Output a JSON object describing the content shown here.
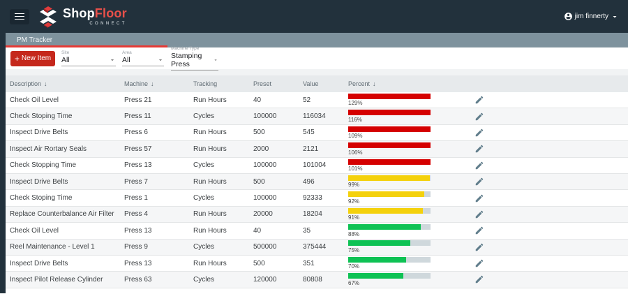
{
  "colors": {
    "red": "#d50000",
    "yellow": "#f4d10c",
    "green": "#0ec254",
    "accent_red": "#c5281c",
    "bar_track": "#cfd8dc"
  },
  "header": {
    "brand": {
      "shop": "Shop",
      "floor": "Floor",
      "connect": "CONNECT"
    },
    "user_name": "jim finnerty"
  },
  "tabbar": {
    "tabs": [
      {
        "label": "PM Tracker"
      }
    ]
  },
  "toolbar": {
    "new_item_button": {
      "plus": "+",
      "label": "New Item"
    },
    "filters": [
      {
        "label": "Site",
        "value": "All"
      },
      {
        "label": "Area",
        "value": "All"
      },
      {
        "label": "Machine Type",
        "value": "Stamping Press"
      }
    ]
  },
  "table": {
    "columns": [
      {
        "label": "Description",
        "sort": "↓"
      },
      {
        "label": "Machine",
        "sort": "↓"
      },
      {
        "label": "Tracking"
      },
      {
        "label": "Preset"
      },
      {
        "label": "Value"
      },
      {
        "label": "Percent",
        "sort": "↓"
      }
    ],
    "rows": [
      {
        "description": "Check Oil Level",
        "machine": "Press 21",
        "tracking": "Run Hours",
        "preset": "40",
        "value": "52",
        "percent": 129,
        "percent_label": "129%",
        "level": "red"
      },
      {
        "description": "Check Stoping Time",
        "machine": "Press 11",
        "tracking": "Cycles",
        "preset": "100000",
        "value": "116034",
        "percent": 116,
        "percent_label": "116%",
        "level": "red"
      },
      {
        "description": "Inspect Drive Belts",
        "machine": "Press 6",
        "tracking": "Run Hours",
        "preset": "500",
        "value": "545",
        "percent": 109,
        "percent_label": "109%",
        "level": "red"
      },
      {
        "description": "Inspect Air Rortary Seals",
        "machine": "Press 57",
        "tracking": "Run Hours",
        "preset": "2000",
        "value": "2121",
        "percent": 106,
        "percent_label": "106%",
        "level": "red"
      },
      {
        "description": "Check Stopping Time",
        "machine": "Press 13",
        "tracking": "Cycles",
        "preset": "100000",
        "value": "101004",
        "percent": 101,
        "percent_label": "101%",
        "level": "red"
      },
      {
        "description": "Inspect Drive Belts",
        "machine": "Press 7",
        "tracking": "Run Hours",
        "preset": "500",
        "value": "496",
        "percent": 99,
        "percent_label": "99%",
        "level": "yellow"
      },
      {
        "description": "Check Stoping Time",
        "machine": "Press 1",
        "tracking": "Cycles",
        "preset": "100000",
        "value": "92333",
        "percent": 92,
        "percent_label": "92%",
        "level": "yellow"
      },
      {
        "description": "Replace Counterbalance Air Filter",
        "machine": "Press 4",
        "tracking": "Run Hours",
        "preset": "20000",
        "value": "18204",
        "percent": 91,
        "percent_label": "91%",
        "level": "yellow"
      },
      {
        "description": "Check Oil Level",
        "machine": "Press 13",
        "tracking": "Run Hours",
        "preset": "40",
        "value": "35",
        "percent": 88,
        "percent_label": "88%",
        "level": "green"
      },
      {
        "description": "Reel Maintenance - Level 1",
        "machine": "Press 9",
        "tracking": "Cycles",
        "preset": "500000",
        "value": "375444",
        "percent": 75,
        "percent_label": "75%",
        "level": "green"
      },
      {
        "description": "Inspect Drive Belts",
        "machine": "Press 13",
        "tracking": "Run Hours",
        "preset": "500",
        "value": "351",
        "percent": 70,
        "percent_label": "70%",
        "level": "green"
      },
      {
        "description": "Inspect Pilot Release Cylinder",
        "machine": "Press 63",
        "tracking": "Cycles",
        "preset": "120000",
        "value": "80808",
        "percent": 67,
        "percent_label": "67%",
        "level": "green"
      }
    ]
  }
}
